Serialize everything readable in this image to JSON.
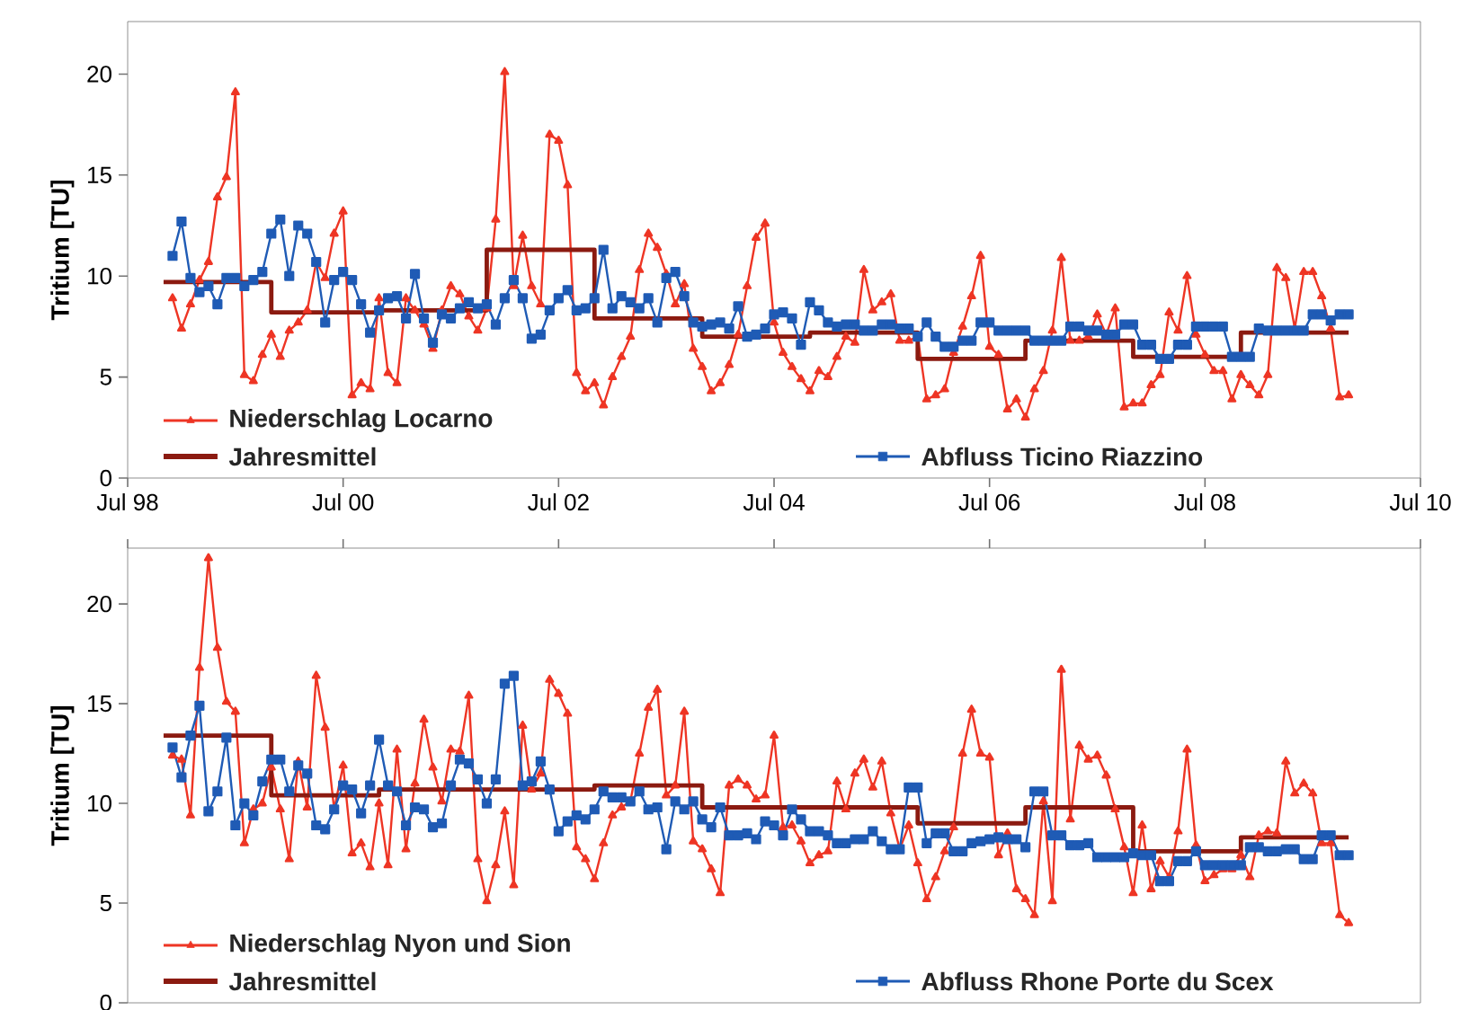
{
  "chart_data": [
    {
      "type": "line",
      "ylabel": "Tritium [TU]",
      "xlim": [
        "1998-07",
        "2010-07"
      ],
      "ylim": [
        0,
        22.6
      ],
      "yticks": [
        0,
        5,
        10,
        15,
        20
      ],
      "legend": "bottom",
      "xticks": [
        {
          "value": "1998-07",
          "label": "Jul 98"
        },
        {
          "value": "2000-07",
          "label": "Jul 00"
        },
        {
          "value": "2002-07",
          "label": "Jul 02"
        },
        {
          "value": "2004-07",
          "label": "Jul 04"
        },
        {
          "value": "2006-07",
          "label": "Jul 06"
        },
        {
          "value": "2008-07",
          "label": "Jul 08"
        },
        {
          "value": "2010-07",
          "label": "Jul 10"
        }
      ],
      "x": [
        "1998-12",
        "1999-01",
        "1999-02",
        "1999-03",
        "1999-04",
        "1999-05",
        "1999-06",
        "1999-07",
        "1999-08",
        "1999-09",
        "1999-10",
        "1999-11",
        "1999-12",
        "2000-01",
        "2000-02",
        "2000-03",
        "2000-04",
        "2000-05",
        "2000-06",
        "2000-07",
        "2000-08",
        "2000-09",
        "2000-10",
        "2000-11",
        "2000-12",
        "2001-01",
        "2001-02",
        "2001-03",
        "2001-04",
        "2001-05",
        "2001-06",
        "2001-07",
        "2001-08",
        "2001-09",
        "2001-10",
        "2001-11",
        "2001-12",
        "2002-01",
        "2002-02",
        "2002-03",
        "2002-04",
        "2002-05",
        "2002-06",
        "2002-07",
        "2002-08",
        "2002-09",
        "2002-10",
        "2002-11",
        "2002-12",
        "2003-01",
        "2003-02",
        "2003-03",
        "2003-04",
        "2003-05",
        "2003-06",
        "2003-07",
        "2003-08",
        "2003-09",
        "2003-10",
        "2003-11",
        "2003-12",
        "2004-01",
        "2004-02",
        "2004-03",
        "2004-04",
        "2004-05",
        "2004-06",
        "2004-07",
        "2004-08",
        "2004-09",
        "2004-10",
        "2004-11",
        "2004-12",
        "2005-01",
        "2005-02",
        "2005-03",
        "2005-04",
        "2005-05",
        "2005-06",
        "2005-07",
        "2005-08",
        "2005-09",
        "2005-10",
        "2005-11",
        "2005-12",
        "2006-01",
        "2006-02",
        "2006-03",
        "2006-04",
        "2006-05",
        "2006-06",
        "2006-07",
        "2006-08",
        "2006-09",
        "2006-10",
        "2006-11",
        "2006-12",
        "2007-01",
        "2007-02",
        "2007-03",
        "2007-04",
        "2007-05",
        "2007-06",
        "2007-07",
        "2007-08",
        "2007-09",
        "2007-10",
        "2007-11",
        "2007-12",
        "2008-01",
        "2008-02",
        "2008-03",
        "2008-04",
        "2008-05",
        "2008-06",
        "2008-07",
        "2008-08",
        "2008-09",
        "2008-10",
        "2008-11",
        "2008-12",
        "2009-01",
        "2009-02",
        "2009-03",
        "2009-04",
        "2009-05",
        "2009-06",
        "2009-07",
        "2009-08",
        "2009-09",
        "2009-10",
        "2009-11"
      ],
      "series": [
        {
          "name": "Niederschlag Locarno",
          "color": "#ee3524",
          "marker": "triangle",
          "values": [
            8.9,
            7.4,
            8.6,
            9.8,
            10.7,
            13.9,
            14.9,
            19.1,
            5.1,
            4.8,
            6.1,
            7.1,
            6.0,
            7.3,
            7.7,
            8.3,
            10.7,
            9.9,
            12.1,
            13.2,
            4.1,
            4.7,
            4.4,
            8.9,
            5.2,
            4.7,
            8.9,
            8.3,
            7.6,
            6.4,
            8.3,
            9.5,
            9.1,
            8.0,
            7.3,
            8.4,
            12.8,
            20.1,
            9.5,
            12.0,
            9.5,
            8.6,
            17.0,
            16.7,
            14.5,
            5.2,
            4.3,
            4.7,
            3.6,
            5.0,
            6.0,
            7.0,
            10.3,
            12.1,
            11.4,
            10.1,
            8.6,
            9.6,
            6.4,
            5.5,
            4.3,
            4.7,
            5.6,
            7.1,
            9.5,
            11.9,
            12.6,
            7.7,
            6.2,
            5.5,
            4.9,
            4.3,
            5.3,
            5.0,
            6.0,
            7.0,
            6.7,
            10.3,
            8.3,
            8.7,
            9.1,
            6.8,
            6.8,
            7.0,
            3.9,
            4.1,
            4.4,
            6.2,
            7.5,
            9.0,
            11.0,
            6.5,
            6.1,
            3.4,
            3.9,
            3.0,
            4.4,
            5.3,
            7.3,
            10.9,
            6.8,
            6.8,
            7.0,
            8.1,
            7.1,
            8.4,
            3.5,
            3.7,
            3.7,
            4.6,
            5.1,
            8.2,
            7.3,
            10.0,
            7.1,
            6.1,
            5.3,
            5.3,
            3.9,
            5.1,
            4.6,
            4.1,
            5.1,
            10.4,
            9.9,
            7.4,
            10.2,
            10.2,
            9.0,
            7.4,
            4.0,
            4.1
          ]
        },
        {
          "name": "Jahresmittel",
          "color": "#8b1a10",
          "type": "step",
          "marker": "none",
          "x": [
            "1998-11",
            "1999-11",
            "2000-11",
            "2001-11",
            "2002-11",
            "2003-11",
            "2004-11",
            "2005-11",
            "2006-11",
            "2007-11",
            "2008-11",
            "2009-11"
          ],
          "values": [
            9.7,
            8.2,
            8.3,
            11.3,
            7.9,
            7.0,
            7.2,
            5.9,
            6.8,
            6.0,
            7.2,
            7.2
          ]
        },
        {
          "name": "Abfluss Ticino Riazzino",
          "color": "#1f5bb5",
          "marker": "square",
          "values": [
            11.0,
            12.7,
            9.9,
            9.2,
            9.5,
            8.6,
            9.9,
            9.9,
            9.5,
            9.8,
            10.2,
            12.1,
            12.8,
            10.0,
            12.5,
            12.1,
            10.7,
            7.7,
            9.8,
            10.2,
            9.8,
            8.6,
            7.2,
            8.3,
            8.9,
            9.0,
            7.9,
            10.1,
            7.9,
            6.7,
            8.1,
            7.9,
            8.4,
            8.7,
            8.4,
            8.6,
            7.6,
            8.9,
            9.8,
            8.9,
            6.9,
            7.1,
            8.3,
            8.9,
            9.3,
            8.3,
            8.4,
            8.9,
            11.3,
            8.4,
            9.0,
            8.7,
            8.4,
            8.9,
            7.7,
            9.9,
            10.2,
            9.0,
            7.7,
            7.5,
            7.6,
            7.7,
            7.4,
            8.5,
            7.0,
            7.1,
            7.4,
            8.1,
            8.2,
            7.9,
            6.6,
            8.7,
            8.3,
            7.7,
            7.5,
            7.6,
            7.6,
            7.3,
            7.3,
            7.6,
            7.6,
            7.4,
            7.4,
            7.0,
            7.7,
            7.0,
            6.5,
            6.5,
            6.8,
            6.8,
            7.7,
            7.7,
            7.3,
            7.3,
            7.3,
            7.3,
            6.8,
            6.8,
            6.8,
            6.8,
            7.5,
            7.5,
            7.3,
            7.3,
            7.1,
            7.1,
            7.6,
            7.6,
            6.6,
            6.6,
            5.9,
            5.9,
            6.6,
            6.6,
            7.5,
            7.5,
            7.5,
            7.5,
            6.0,
            6.0,
            6.0,
            7.4,
            7.3,
            7.3,
            7.3,
            7.3,
            7.3,
            8.1,
            8.1,
            7.8,
            8.1,
            8.1
          ]
        }
      ]
    },
    {
      "type": "line",
      "ylabel": "Tritium [TU]",
      "xlim": [
        "1998-07",
        "2010-07"
      ],
      "ylim": [
        0,
        22.8
      ],
      "yticks": [
        0,
        5,
        10,
        15,
        20
      ],
      "legend": "bottom",
      "tick_labels": "y",
      "xticks": [
        {
          "value": "1998-07",
          "label": null
        },
        {
          "value": "2000-07",
          "label": null
        },
        {
          "value": "2002-07",
          "label": null
        },
        {
          "value": "2004-07",
          "label": null
        },
        {
          "value": "2006-07",
          "label": null
        },
        {
          "value": "2008-07",
          "label": null
        },
        {
          "value": "2010-07",
          "label": null
        }
      ],
      "x": [
        "1998-12",
        "1999-01",
        "1999-02",
        "1999-03",
        "1999-04",
        "1999-05",
        "1999-06",
        "1999-07",
        "1999-08",
        "1999-09",
        "1999-10",
        "1999-11",
        "1999-12",
        "2000-01",
        "2000-02",
        "2000-03",
        "2000-04",
        "2000-05",
        "2000-06",
        "2000-07",
        "2000-08",
        "2000-09",
        "2000-10",
        "2000-11",
        "2000-12",
        "2001-01",
        "2001-02",
        "2001-03",
        "2001-04",
        "2001-05",
        "2001-06",
        "2001-07",
        "2001-08",
        "2001-09",
        "2001-10",
        "2001-11",
        "2001-12",
        "2002-01",
        "2002-02",
        "2002-03",
        "2002-04",
        "2002-05",
        "2002-06",
        "2002-07",
        "2002-08",
        "2002-09",
        "2002-10",
        "2002-11",
        "2002-12",
        "2003-01",
        "2003-02",
        "2003-03",
        "2003-04",
        "2003-05",
        "2003-06",
        "2003-07",
        "2003-08",
        "2003-09",
        "2003-10",
        "2003-11",
        "2003-12",
        "2004-01",
        "2004-02",
        "2004-03",
        "2004-04",
        "2004-05",
        "2004-06",
        "2004-07",
        "2004-08",
        "2004-09",
        "2004-10",
        "2004-11",
        "2004-12",
        "2005-01",
        "2005-02",
        "2005-03",
        "2005-04",
        "2005-05",
        "2005-06",
        "2005-07",
        "2005-08",
        "2005-09",
        "2005-10",
        "2005-11",
        "2005-12",
        "2006-01",
        "2006-02",
        "2006-03",
        "2006-04",
        "2006-05",
        "2006-06",
        "2006-07",
        "2006-08",
        "2006-09",
        "2006-10",
        "2006-11",
        "2006-12",
        "2007-01",
        "2007-02",
        "2007-03",
        "2007-04",
        "2007-05",
        "2007-06",
        "2007-07",
        "2007-08",
        "2007-09",
        "2007-10",
        "2007-11",
        "2007-12",
        "2008-01",
        "2008-02",
        "2008-03",
        "2008-04",
        "2008-05",
        "2008-06",
        "2008-07",
        "2008-08",
        "2008-09",
        "2008-10",
        "2008-11",
        "2008-12",
        "2009-01",
        "2009-02",
        "2009-03",
        "2009-04",
        "2009-05",
        "2009-06",
        "2009-07",
        "2009-08",
        "2009-09",
        "2009-10",
        "2009-11"
      ],
      "series": [
        {
          "name": "Niederschlag Nyon und Sion",
          "color": "#ee3524",
          "marker": "triangle",
          "values": [
            12.4,
            12.2,
            9.4,
            16.8,
            22.3,
            17.8,
            15.1,
            14.6,
            8.0,
            9.7,
            10.0,
            11.8,
            9.7,
            7.2,
            12.1,
            9.8,
            16.4,
            13.8,
            9.7,
            11.9,
            7.5,
            8.0,
            6.8,
            10.0,
            6.9,
            12.7,
            7.7,
            11.0,
            14.2,
            11.8,
            10.1,
            12.7,
            12.6,
            15.4,
            7.2,
            5.1,
            6.9,
            9.6,
            5.9,
            13.9,
            10.7,
            11.5,
            16.2,
            15.5,
            14.5,
            7.8,
            7.2,
            6.2,
            8.0,
            9.4,
            9.8,
            10.1,
            12.5,
            14.8,
            15.7,
            10.4,
            10.9,
            14.6,
            8.1,
            7.7,
            6.7,
            5.5,
            10.9,
            11.2,
            10.9,
            10.2,
            10.4,
            13.4,
            8.8,
            8.9,
            8.1,
            7.0,
            7.4,
            7.6,
            11.1,
            9.7,
            11.5,
            12.2,
            10.8,
            12.1,
            9.5,
            7.7,
            8.9,
            7.0,
            5.2,
            6.3,
            7.6,
            8.8,
            12.5,
            14.7,
            12.5,
            12.3,
            7.4,
            8.5,
            5.7,
            5.2,
            4.4,
            10.1,
            5.1,
            16.7,
            9.2,
            12.9,
            12.2,
            12.4,
            11.4,
            9.7,
            7.8,
            5.5,
            8.9,
            5.7,
            7.1,
            6.3,
            8.6,
            12.7,
            7.9,
            6.1,
            6.4,
            6.7,
            6.7,
            7.4,
            6.3,
            8.4,
            8.6,
            8.5,
            12.1,
            10.5,
            11.0,
            10.5,
            8.0,
            8.0,
            4.4,
            4.0
          ]
        },
        {
          "name": "Jahresmittel",
          "color": "#8b1a10",
          "type": "step",
          "marker": "none",
          "x": [
            "1998-11",
            "1999-11",
            "2000-11",
            "2001-11",
            "2002-11",
            "2003-11",
            "2004-11",
            "2005-11",
            "2006-11",
            "2007-11",
            "2008-11",
            "2009-11"
          ],
          "values": [
            13.4,
            10.4,
            10.7,
            10.7,
            10.9,
            9.8,
            9.8,
            9.0,
            9.8,
            7.6,
            8.3,
            8.3
          ]
        },
        {
          "name": "Abfluss Rhone Porte du Scex",
          "color": "#1f5bb5",
          "marker": "square",
          "values": [
            12.8,
            11.3,
            13.4,
            14.9,
            9.6,
            10.6,
            13.3,
            8.9,
            10.0,
            9.4,
            11.1,
            12.2,
            12.2,
            10.6,
            11.9,
            11.5,
            8.9,
            8.7,
            9.7,
            10.9,
            10.7,
            9.5,
            10.9,
            13.2,
            10.9,
            10.6,
            8.9,
            9.8,
            9.7,
            8.8,
            9.0,
            10.9,
            12.2,
            12.0,
            11.2,
            10.0,
            11.2,
            16.0,
            16.4,
            10.9,
            11.1,
            12.1,
            10.7,
            8.6,
            9.1,
            9.4,
            9.2,
            9.7,
            10.6,
            10.3,
            10.3,
            10.1,
            10.6,
            9.7,
            9.8,
            7.7,
            10.1,
            9.7,
            10.1,
            9.2,
            8.8,
            9.8,
            8.4,
            8.4,
            8.5,
            8.2,
            9.1,
            8.9,
            8.4,
            9.7,
            9.2,
            8.6,
            8.6,
            8.4,
            8.0,
            8.0,
            8.2,
            8.2,
            8.6,
            8.1,
            7.7,
            7.7,
            10.8,
            10.8,
            8.0,
            8.5,
            8.5,
            7.6,
            7.6,
            8.0,
            8.1,
            8.2,
            8.3,
            8.2,
            8.2,
            7.8,
            10.6,
            10.6,
            8.4,
            8.4,
            7.9,
            7.9,
            8.0,
            7.3,
            7.3,
            7.3,
            7.3,
            7.5,
            7.4,
            7.4,
            6.1,
            6.1,
            7.1,
            7.1,
            7.6,
            6.9,
            6.9,
            6.9,
            6.9,
            6.9,
            7.8,
            7.8,
            7.6,
            7.6,
            7.7,
            7.7,
            7.2,
            7.2,
            8.4,
            8.4,
            7.4,
            7.4
          ]
        }
      ]
    }
  ]
}
